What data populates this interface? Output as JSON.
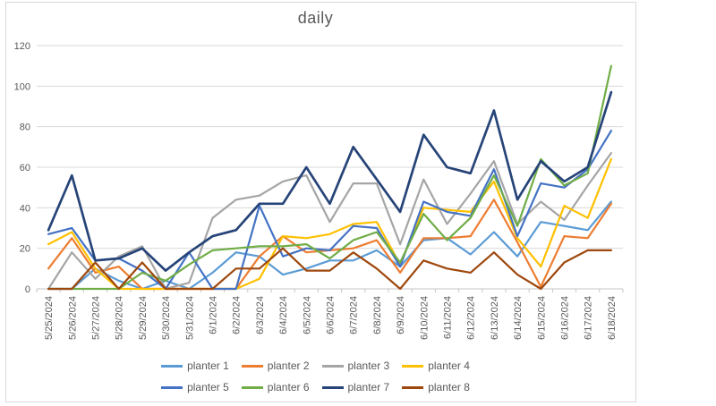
{
  "chart_data": {
    "type": "line",
    "title": "daily",
    "categories": [
      "5/25/2024",
      "5/26/2024",
      "5/27/2024",
      "5/28/2024",
      "5/29/2024",
      "5/30/2024",
      "5/31/2024",
      "6/1/2024",
      "6/2/2024",
      "6/3/2024",
      "6/4/2024",
      "6/5/2024",
      "6/6/2024",
      "6/7/2024",
      "6/8/2024",
      "6/9/2024",
      "6/10/2024",
      "6/11/2024",
      "6/12/2024",
      "6/13/2024",
      "6/14/2024",
      "6/15/2024",
      "6/16/2024",
      "6/17/2024",
      "6/18/2024"
    ],
    "series": [
      {
        "name": "planter 1",
        "color": "#5B9BD5",
        "values": [
          0,
          0,
          10,
          4,
          0,
          4,
          0,
          8,
          18,
          16,
          7,
          10,
          14,
          14,
          19,
          11,
          24,
          25,
          17,
          28,
          16,
          33,
          31,
          29,
          43
        ]
      },
      {
        "name": "planter 2",
        "color": "#ED7D31",
        "values": [
          10,
          25,
          8,
          11,
          0,
          0,
          0,
          0,
          0,
          16,
          26,
          18,
          19,
          20,
          24,
          8,
          25,
          25,
          26,
          44,
          23,
          1,
          26,
          25,
          42
        ]
      },
      {
        "name": "planter 3",
        "color": "#A5A5A5",
        "values": [
          0,
          18,
          5,
          16,
          21,
          0,
          3,
          35,
          44,
          46,
          53,
          56,
          33,
          52,
          52,
          22,
          54,
          32,
          47,
          63,
          32,
          43,
          34,
          51,
          67
        ]
      },
      {
        "name": "planter 4",
        "color": "#FFC000",
        "values": [
          22,
          28,
          10,
          0,
          0,
          0,
          0,
          0,
          0,
          5,
          26,
          25,
          27,
          32,
          33,
          12,
          40,
          39,
          38,
          53,
          25,
          11,
          41,
          35,
          64
        ]
      },
      {
        "name": "planter 5",
        "color": "#4472C4",
        "values": [
          27,
          30,
          14,
          15,
          9,
          0,
          18,
          0,
          0,
          41,
          16,
          20,
          19,
          31,
          30,
          11,
          43,
          38,
          36,
          59,
          26,
          52,
          50,
          59,
          78
        ]
      },
      {
        "name": "planter 6",
        "color": "#70AD47",
        "values": [
          0,
          0,
          0,
          0,
          8,
          4,
          12,
          19,
          20,
          21,
          21,
          22,
          15,
          24,
          28,
          13,
          37,
          24,
          35,
          56,
          31,
          64,
          51,
          57,
          110
        ]
      },
      {
        "name": "planter 7",
        "color": "#264478",
        "values": [
          29,
          56,
          14,
          15,
          20,
          9,
          18,
          26,
          29,
          42,
          42,
          60,
          42,
          70,
          54,
          38,
          76,
          60,
          57,
          88,
          44,
          63,
          53,
          60,
          97
        ]
      },
      {
        "name": "planter 8",
        "color": "#9E480E",
        "values": [
          0,
          0,
          13,
          0,
          13,
          0,
          0,
          0,
          10,
          10,
          20,
          9,
          9,
          18,
          10,
          0,
          14,
          10,
          8,
          18,
          7,
          0,
          13,
          19,
          19
        ]
      }
    ],
    "ylim": [
      0,
      120
    ],
    "yticks": [
      0,
      20,
      40,
      60,
      80,
      100,
      120
    ],
    "grid": true,
    "legend_position": "bottom",
    "legend_rows": [
      [
        "planter 1",
        "planter 2",
        "planter 3",
        "planter 4"
      ],
      [
        "planter 5",
        "planter 6",
        "planter 7",
        "planter 8"
      ]
    ]
  },
  "colors": {
    "background": "#FFFFFF",
    "frame_border": "#D9D9D9",
    "gridline": "#D9D9D9",
    "axis_line": "#C6C6C6",
    "text": "#595959"
  }
}
